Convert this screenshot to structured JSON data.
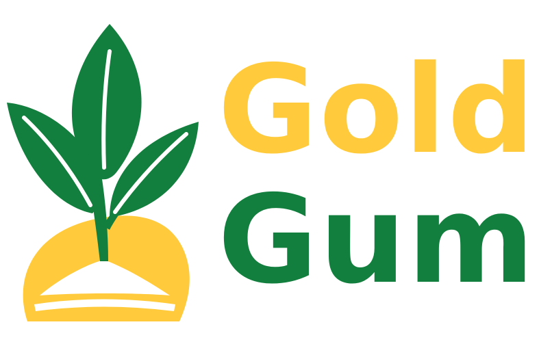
{
  "brand": {
    "line1": "Gold",
    "line2": "Gum"
  },
  "colors": {
    "gold": "#FFCB3C",
    "green": "#137F3E",
    "background": "#FFFFFF"
  },
  "emblem": {
    "icon": "sprout-in-gold-mound-icon"
  }
}
